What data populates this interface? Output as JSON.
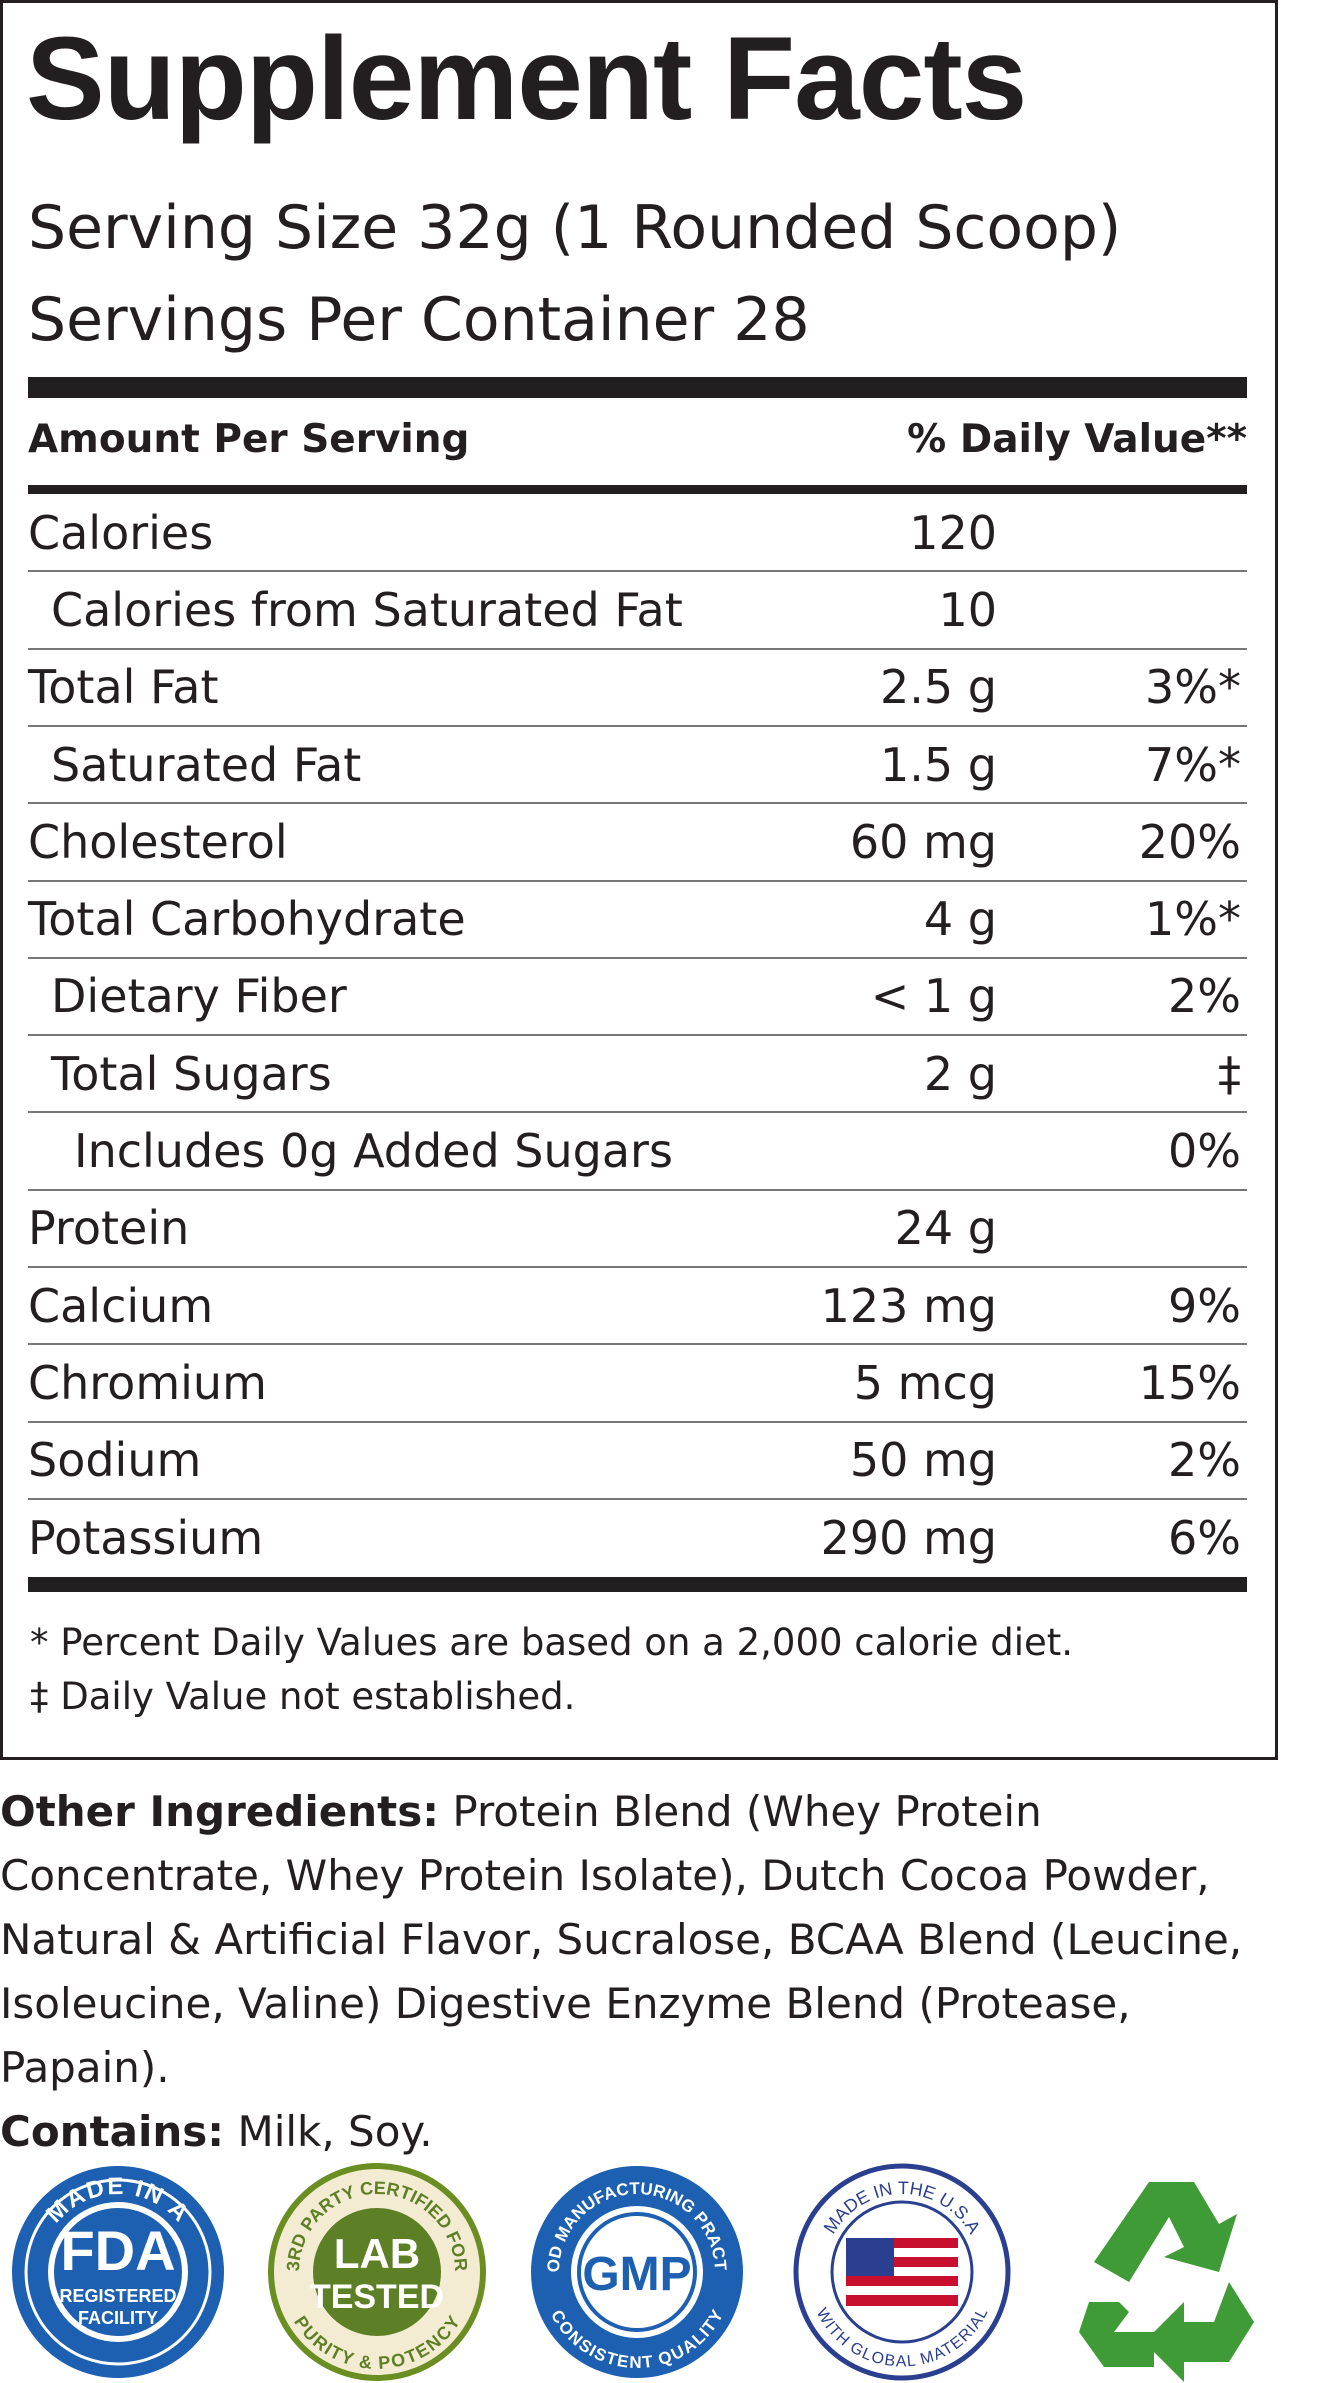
{
  "header": {
    "title": "Supplement Facts",
    "serving_size": "Serving Size 32g (1 Rounded Scoop)",
    "servings_per_container": "Servings Per Container  28"
  },
  "table": {
    "column_headers": [
      "Amount Per Serving",
      "% Daily Value**"
    ],
    "rows": [
      {
        "name": "Calories",
        "amount": "120"
      },
      {
        "name": "Calories from Saturated Fat",
        "amount": "10"
      },
      {
        "name": "Total Fat",
        "amount": "2.5 g",
        "dv": "3%*"
      },
      {
        "name": "Saturated Fat",
        "amount": "1.5 g",
        "dv": "7%*"
      },
      {
        "name": "Cholesterol",
        "amount": "60 mg",
        "dv": "20%"
      },
      {
        "name": "Total Carbohydrate",
        "amount": "4 g",
        "dv": "1%*"
      },
      {
        "name": "Dietary Fiber",
        "amount": "< 1 g",
        "dv": "2%"
      },
      {
        "name": "Total Sugars",
        "amount": "2 g",
        "dv": "‡"
      },
      {
        "name": "Includes 0g Added Sugars",
        "dv": "0%"
      },
      {
        "name": "Protein",
        "amount": "24 g"
      },
      {
        "name": "Calcium",
        "amount": "123 mg",
        "dv": "9%"
      },
      {
        "name": "Chromium",
        "amount": "5 mcg",
        "dv": "15%"
      },
      {
        "name": "Sodium",
        "amount": "50 mg",
        "dv": "2%"
      },
      {
        "name": "Potassium",
        "amount": "290 mg",
        "dv": "6%"
      }
    ]
  },
  "footnotes": [
    "* Percent Daily Values are based on a 2,000 calorie diet.",
    "‡ Daily Value not established."
  ],
  "ingredients": {
    "label": "Other Ingredients:",
    "text": "Protein Blend (Whey Protein Concentrate, Whey Protein Isolate), Dutch Cocoa Powder, Natural & Artificial Flavor, Sucralose, BCAA Blend (Leucine, Isoleucine, Valine) Digestive Enzyme Blend (Protease, Papain)."
  },
  "contains": {
    "label": "Contains:",
    "text": "Milk, Soy."
  },
  "badges": [
    {
      "top": "MADE IN A",
      "main": "FDA",
      "sub": [
        "REGISTERED",
        "FACILITY"
      ]
    },
    {
      "top": "3RD PARTY CERTIFIED FOR",
      "main": [
        "LAB",
        "TESTED"
      ],
      "bottom": "PURITY & POTENCY"
    },
    {
      "top": "GOOD MANUFACTURING PRACTICE",
      "main": "GMP",
      "bottom": "CONSISTENT QUALITY"
    },
    {
      "top": "MADE IN THE U.S.A",
      "bottom": "WITH GLOBAL MATERIAL"
    }
  ]
}
